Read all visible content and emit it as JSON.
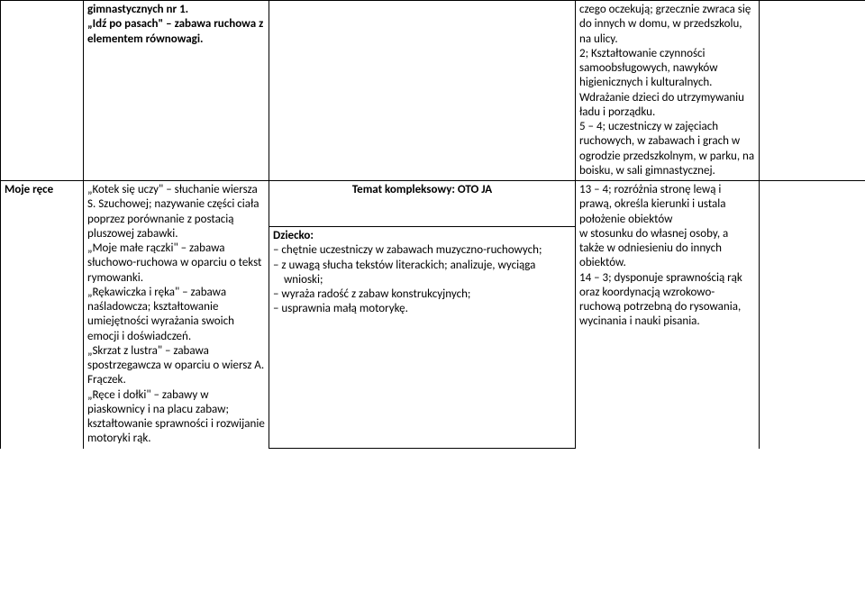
{
  "colors": {
    "border": "#000000",
    "background": "#ffffff",
    "text": "#000000"
  },
  "font": {
    "family": "Calibri, Arial, sans-serif",
    "size_pt": 10,
    "line_height": 1.25
  },
  "row1": {
    "c1": "gimnastycznych nr 1.\n„Idź po pasach\" – zabawa ruchowa z elementem równowagi.",
    "c3": "czego oczekują; grzecznie zwraca się do innych w domu, w przedszkolu, na ulicy.\n2; Kształtowanie czynności samoobsługowych, nawyków higienicznych i kulturalnych.\nWdrażanie dzieci do utrzymywaniu ładu i porządku.\n5 – 4; uczestniczy w zajęciach ruchowych, w zabawach i grach w ogrodzie przedszkolnym, w parku, na boisku, w sali gimnastycznej."
  },
  "theme": "Temat kompleksowy: OTO JA",
  "row2": {
    "c0": "Moje ręce",
    "c1": "„Kotek się uczy\" – słuchanie wiersza S. Szuchowej; nazywanie części ciała poprzez porównanie z postacią pluszowej zabawki.\n„Moje małe rączki\" – zabawa słuchowo-ruchowa w oparciu o tekst rymowanki.\n„Rękawiczka i ręka\" – zabawa naśladowcza; kształtowanie umiejętności wyrażania swoich emocji i doświadczeń.\n„Skrzat z lustra\" – zabawa spostrzegawcza w oparciu o wiersz A. Frączek.\n„Ręce i dołki\" – zabawy w piaskownicy i na placu zabaw; kształtowanie sprawności i rozwijanie motoryki rąk.",
    "c2_head": "Dziecko:",
    "c2_items": [
      "chętnie uczestniczy w zabawach muzyczno-ruchowych;",
      "z uwagą słucha tekstów literackich; analizuje, wyciąga wnioski;",
      "wyraża radość z zabaw konstrukcyjnych;",
      "usprawnia małą motorykę."
    ],
    "c3": "13 – 4; rozróżnia stronę lewą i prawą, określa kierunki i ustala położenie obiektów\nw stosunku do własnej osoby, a także w odniesieniu do innych obiektów.\n14 – 3; dysponuje sprawnością rąk oraz koordynacją wzrokowo-ruchową potrzebną do rysowania, wycinania i nauki pisania."
  }
}
